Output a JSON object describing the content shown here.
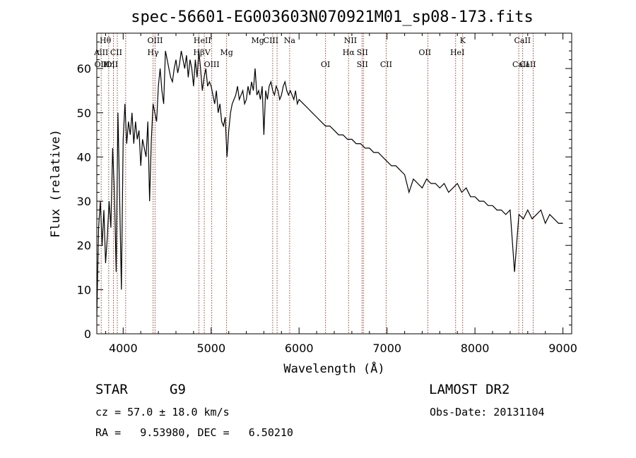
{
  "chart_data": {
    "type": "line",
    "title": "spec-56601-EG003603N070921M01_sp08-173.fits",
    "xlabel": "Wavelength (Å)",
    "ylabel": "Flux (relative)",
    "xlim": [
      3700,
      9100
    ],
    "ylim": [
      0,
      68
    ],
    "xticks": [
      4000,
      5000,
      6000,
      7000,
      8000,
      9000
    ],
    "yticks": [
      0,
      10,
      20,
      30,
      40,
      50,
      60
    ],
    "grid": false,
    "series": [
      {
        "x": [
          3700,
          3720,
          3740,
          3760,
          3780,
          3800,
          3820,
          3840,
          3860,
          3880,
          3900,
          3920,
          3940,
          3960,
          3980,
          4000,
          4020,
          4040,
          4060,
          4080,
          4100,
          4120,
          4140,
          4160,
          4180,
          4200,
          4220,
          4240,
          4260,
          4280,
          4300,
          4320,
          4340,
          4360,
          4380,
          4400,
          4420,
          4440,
          4460,
          4480,
          4500,
          4520,
          4540,
          4560,
          4580,
          4600,
          4620,
          4640,
          4660,
          4680,
          4700,
          4720,
          4740,
          4760,
          4780,
          4800,
          4820,
          4840,
          4860,
          4880,
          4900,
          4920,
          4940,
          4960,
          4980,
          5000,
          5020,
          5040,
          5060,
          5080,
          5100,
          5120,
          5140,
          5160,
          5180,
          5200,
          5220,
          5240,
          5260,
          5280,
          5300,
          5320,
          5340,
          5360,
          5380,
          5400,
          5420,
          5440,
          5460,
          5480,
          5500,
          5520,
          5540,
          5560,
          5580,
          5600,
          5620,
          5640,
          5660,
          5680,
          5700,
          5720,
          5740,
          5760,
          5780,
          5800,
          5820,
          5840,
          5860,
          5880,
          5900,
          5920,
          5940,
          5960,
          5980,
          6000,
          6050,
          6100,
          6150,
          6200,
          6250,
          6300,
          6350,
          6400,
          6450,
          6500,
          6550,
          6600,
          6650,
          6700,
          6750,
          6800,
          6850,
          6900,
          6950,
          7000,
          7050,
          7100,
          7150,
          7200,
          7250,
          7300,
          7350,
          7400,
          7450,
          7500,
          7550,
          7600,
          7650,
          7700,
          7750,
          7800,
          7850,
          7900,
          7950,
          8000,
          8050,
          8100,
          8150,
          8200,
          8250,
          8300,
          8350,
          8400,
          8450,
          8500,
          8550,
          8600,
          8650,
          8700,
          8750,
          8800,
          8850,
          8900,
          8950,
          9000
        ],
        "y": [
          4,
          24,
          30,
          20,
          28,
          16,
          22,
          30,
          24,
          42,
          32,
          14,
          50,
          30,
          10,
          44,
          52,
          43,
          48,
          45,
          50,
          43,
          48,
          44,
          46,
          38,
          44,
          42,
          40,
          48,
          30,
          44,
          52,
          50,
          48,
          56,
          60,
          55,
          52,
          64,
          62,
          60,
          58,
          57,
          60,
          62,
          59,
          61,
          64,
          62,
          60,
          63,
          58,
          62,
          60,
          56,
          62,
          58,
          64,
          60,
          55,
          58,
          60,
          56,
          57,
          56,
          54,
          52,
          55,
          50,
          52,
          48,
          47,
          49,
          40,
          46,
          50,
          52,
          53,
          54,
          56,
          53,
          54,
          55,
          52,
          53,
          56,
          54,
          57,
          55,
          60,
          54,
          55,
          53,
          56,
          45,
          55,
          53,
          56,
          57,
          55,
          54,
          56,
          55,
          53,
          54,
          56,
          57,
          55,
          54,
          55,
          54,
          53,
          55,
          52,
          53,
          52,
          51,
          50,
          49,
          48,
          47,
          47,
          46,
          45,
          45,
          44,
          44,
          43,
          43,
          42,
          42,
          41,
          41,
          40,
          39,
          38,
          38,
          37,
          36,
          32,
          35,
          34,
          33,
          35,
          34,
          34,
          33,
          34,
          32,
          33,
          34,
          32,
          33,
          31,
          31,
          30,
          30,
          29,
          29,
          28,
          28,
          27,
          28,
          14,
          27,
          26,
          28,
          26,
          27,
          28,
          25,
          27,
          26,
          25,
          25
        ],
        "color": "#000000"
      }
    ],
    "spectral_lines": [
      {
        "label": "Hθ",
        "x": 3797,
        "row": 0
      },
      {
        "label": "AlII",
        "x": 3750,
        "row": 1
      },
      {
        "label": "OIII",
        "x": 3760,
        "row": 2
      },
      {
        "label": "Hη",
        "x": 3835,
        "row": 2
      },
      {
        "label": "OII",
        "x": 3870,
        "row": 2
      },
      {
        "label": "CII",
        "x": 3920,
        "row": 1
      },
      {
        "label": "OIII",
        "x": 4363,
        "row": 0
      },
      {
        "label": "Hγ",
        "x": 4340,
        "row": 1
      },
      {
        "label": "HeII",
        "x": 4900,
        "row": 0
      },
      {
        "label": "Hβ",
        "x": 4861,
        "row": 1
      },
      {
        "label": "V",
        "x": 4960,
        "row": 1
      },
      {
        "label": "OIII",
        "x": 5007,
        "row": 2
      },
      {
        "label": "Mg",
        "x": 5175,
        "row": 1
      },
      {
        "label": "Mg",
        "x": 5530,
        "row": 0
      },
      {
        "label": "CIII",
        "x": 5680,
        "row": 0
      },
      {
        "label": "Na",
        "x": 5893,
        "row": 0
      },
      {
        "label": "OI",
        "x": 6300,
        "row": 2
      },
      {
        "label": "NII",
        "x": 6584,
        "row": 0
      },
      {
        "label": "Hα",
        "x": 6563,
        "row": 1
      },
      {
        "label": "SII",
        "x": 6720,
        "row": 1
      },
      {
        "label": "SII",
        "x": 6720,
        "row": 2
      },
      {
        "label": "CII",
        "x": 6990,
        "row": 2
      },
      {
        "label": "OII",
        "x": 7430,
        "row": 1
      },
      {
        "label": "K",
        "x": 7860,
        "row": 0
      },
      {
        "label": "HeI",
        "x": 7800,
        "row": 1
      },
      {
        "label": "CaII",
        "x": 8540,
        "row": 0
      },
      {
        "label": "CaII",
        "x": 8520,
        "row": 2
      },
      {
        "label": "CaII",
        "x": 8600,
        "row": 2
      }
    ],
    "line_markers": [
      3750,
      3835,
      3889,
      3933,
      4028,
      4340,
      4363,
      4861,
      4922,
      5007,
      5175,
      5700,
      5750,
      5893,
      6300,
      6563,
      6716,
      6731,
      6990,
      7465,
      7780,
      7860,
      8498,
      8542,
      8662
    ]
  },
  "info": {
    "class": "STAR",
    "subclass": "G9",
    "survey": "LAMOST DR2",
    "cz": "cz = 57.0 ± 18.0 km/s",
    "obs_date": "Obs-Date: 20131104",
    "radec": "RA =   9.53980, DEC =   6.50210"
  }
}
